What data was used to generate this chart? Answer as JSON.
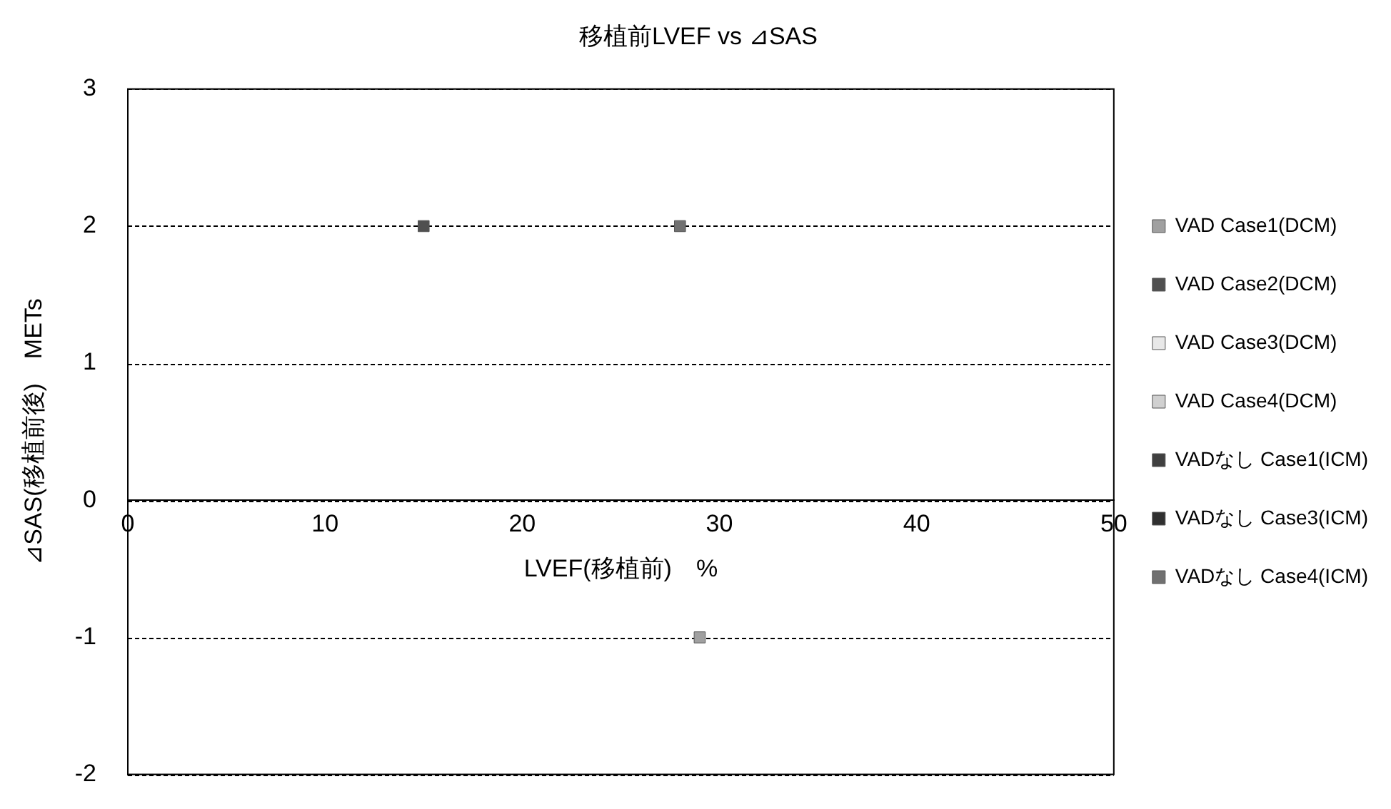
{
  "chart_data": {
    "type": "scatter",
    "title": "移植前LVEF vs ⊿SAS",
    "xlabel": "LVEF(移植前)　%",
    "ylabel": "⊿SAS(移植前後)　METs",
    "xlim": [
      0,
      50
    ],
    "xticks": [
      0,
      10,
      20,
      30,
      40,
      50
    ],
    "ylim": [
      -2,
      3
    ],
    "yticks": [
      -2,
      -1,
      0,
      1,
      2,
      3
    ],
    "grid": "y",
    "legend": "right",
    "marker": "square",
    "series": [
      {
        "name": "VAD Case1(DCM)",
        "color": "#a0a0a0",
        "x": [
          29
        ],
        "values": [
          -1
        ]
      },
      {
        "name": "VAD Case2(DCM)",
        "color": "#505050",
        "x": [
          15
        ],
        "values": [
          2
        ]
      },
      {
        "name": "VAD Case3(DCM)",
        "color": "#e8e8e8"
      },
      {
        "name": "VAD Case4(DCM)",
        "color": "#d0d0d0"
      },
      {
        "name": "VADなし Case1(ICM)",
        "color": "#404040"
      },
      {
        "name": "VADなし Case3(ICM)",
        "color": "#303030"
      },
      {
        "name": "VADなし Case4(ICM)",
        "color": "#707070",
        "x": [
          28
        ],
        "values": [
          2
        ]
      }
    ]
  }
}
